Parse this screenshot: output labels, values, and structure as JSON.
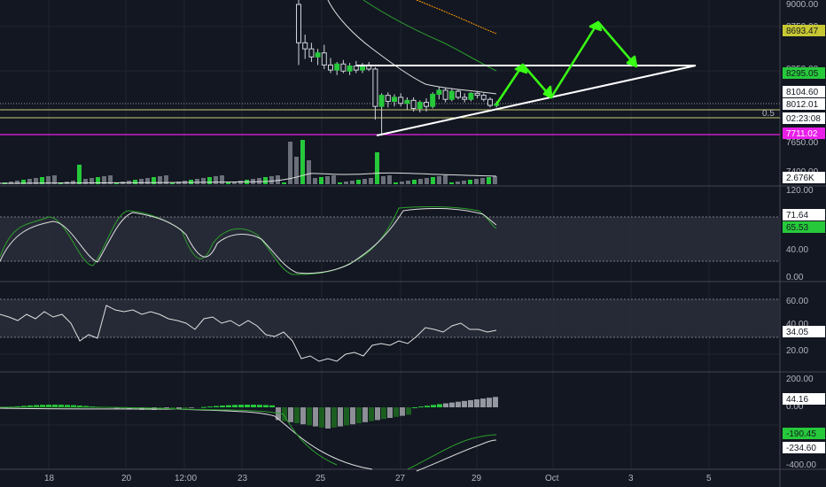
{
  "colors": {
    "background": "#131722",
    "grid": "#1f2430",
    "text": "#b2b5be",
    "up": "#26c93a",
    "down": "#ffffff",
    "ma_green": "#2ca02c",
    "ma_white": "#e0e0e0",
    "ma_orange": "#ff9800",
    "fib_line": "#c8c86e",
    "magenta": "#e91ee9",
    "arrow": "#39ff14",
    "pane_band": "#2a2e39"
  },
  "price_axis": {
    "ticks": [
      "9000.00",
      "8750.00",
      "8250.00",
      "7650.00"
    ],
    "badges": [
      {
        "label": "8693.47",
        "bg": "#c8c832",
        "fg": "#131722"
      },
      {
        "label": "8295.05",
        "bg": "#26c93a",
        "fg": "#131722"
      },
      {
        "label": "8104.60",
        "bg": "#ffffff",
        "fg": "#131722"
      },
      {
        "label": "8012.01",
        "bg": "#ffffff",
        "fg": "#131722"
      },
      {
        "label": "02:23:08",
        "bg": "#ffffff",
        "fg": "#131722"
      },
      {
        "label": "7711.02",
        "bg": "#e91ee9",
        "fg": "#ffffff"
      }
    ],
    "fib_label": "0.5"
  },
  "volume_pane": {
    "ticks": [
      "7400.00"
    ],
    "badge": {
      "label": "2.676K",
      "bg": "#ffffff",
      "fg": "#131722"
    }
  },
  "stoch_pane": {
    "ticks": [
      "120.00",
      "40.00",
      "0.00"
    ],
    "badges": [
      {
        "label": "71.64",
        "bg": "#ffffff",
        "fg": "#131722"
      },
      {
        "label": "65.53",
        "bg": "#26c93a",
        "fg": "#131722"
      }
    ]
  },
  "rsi_pane": {
    "ticks": [
      "60.00",
      "40.00",
      "20.00"
    ],
    "badge": {
      "label": "34.05",
      "bg": "#ffffff",
      "fg": "#131722"
    }
  },
  "macd_pane": {
    "ticks": [
      "200.00",
      "0.00",
      "-400.00"
    ],
    "badges": [
      {
        "label": "44.16",
        "bg": "#ffffff",
        "fg": "#131722"
      },
      {
        "label": "-190.45",
        "bg": "#26c93a",
        "fg": "#131722"
      },
      {
        "label": "-234.60",
        "bg": "#ffffff",
        "fg": "#131722"
      }
    ]
  },
  "time_axis": {
    "labels": [
      "18",
      "20",
      "12:00",
      "23",
      "25",
      "27",
      "29",
      "Oct",
      "3",
      "5"
    ]
  },
  "chart_data": {
    "type": "candlestick",
    "candles": [
      {
        "o": 9000,
        "h": 9080,
        "l": 8400,
        "c": 8620
      },
      {
        "o": 8620,
        "h": 8700,
        "l": 8460,
        "c": 8560
      },
      {
        "o": 8560,
        "h": 8620,
        "l": 8430,
        "c": 8480
      },
      {
        "o": 8480,
        "h": 8560,
        "l": 8400,
        "c": 8520
      },
      {
        "o": 8520,
        "h": 8600,
        "l": 8360,
        "c": 8400
      },
      {
        "o": 8400,
        "h": 8470,
        "l": 8320,
        "c": 8350
      },
      {
        "o": 8350,
        "h": 8430,
        "l": 8300,
        "c": 8410
      },
      {
        "o": 8410,
        "h": 8450,
        "l": 8320,
        "c": 8340
      },
      {
        "o": 8340,
        "h": 8420,
        "l": 8300,
        "c": 8390
      },
      {
        "o": 8390,
        "h": 8440,
        "l": 8320,
        "c": 8350
      },
      {
        "o": 8350,
        "h": 8420,
        "l": 8320,
        "c": 8400
      },
      {
        "o": 8400,
        "h": 8430,
        "l": 8340,
        "c": 8360
      },
      {
        "o": 8360,
        "h": 8380,
        "l": 7860,
        "c": 7990
      },
      {
        "o": 7990,
        "h": 8120,
        "l": 7700,
        "c": 8100
      },
      {
        "o": 8100,
        "h": 8130,
        "l": 7980,
        "c": 8040
      },
      {
        "o": 8040,
        "h": 8110,
        "l": 7990,
        "c": 8080
      },
      {
        "o": 8080,
        "h": 8120,
        "l": 7990,
        "c": 8020
      },
      {
        "o": 8020,
        "h": 8080,
        "l": 7960,
        "c": 8050
      },
      {
        "o": 8050,
        "h": 8080,
        "l": 7940,
        "c": 7970
      },
      {
        "o": 7970,
        "h": 8050,
        "l": 7930,
        "c": 8030
      },
      {
        "o": 8030,
        "h": 8070,
        "l": 7940,
        "c": 7990
      },
      {
        "o": 7990,
        "h": 8130,
        "l": 7970,
        "c": 8110
      },
      {
        "o": 8110,
        "h": 8180,
        "l": 8060,
        "c": 8150
      },
      {
        "o": 8150,
        "h": 8170,
        "l": 8030,
        "c": 8060
      },
      {
        "o": 8060,
        "h": 8170,
        "l": 8040,
        "c": 8140
      },
      {
        "o": 8140,
        "h": 8160,
        "l": 8060,
        "c": 8080
      },
      {
        "o": 8080,
        "h": 8120,
        "l": 8030,
        "c": 8060
      },
      {
        "o": 8060,
        "h": 8130,
        "l": 8040,
        "c": 8120
      },
      {
        "o": 8120,
        "h": 8140,
        "l": 8070,
        "c": 8100
      },
      {
        "o": 8100,
        "h": 8120,
        "l": 8040,
        "c": 8060
      },
      {
        "o": 8060,
        "h": 8080,
        "l": 7980,
        "c": 8000
      },
      {
        "o": 8000,
        "h": 8040,
        "l": 7980,
        "c": 8012
      }
    ],
    "projection_prices": [
      8012,
      8295,
      8104,
      8650,
      8295
    ]
  }
}
